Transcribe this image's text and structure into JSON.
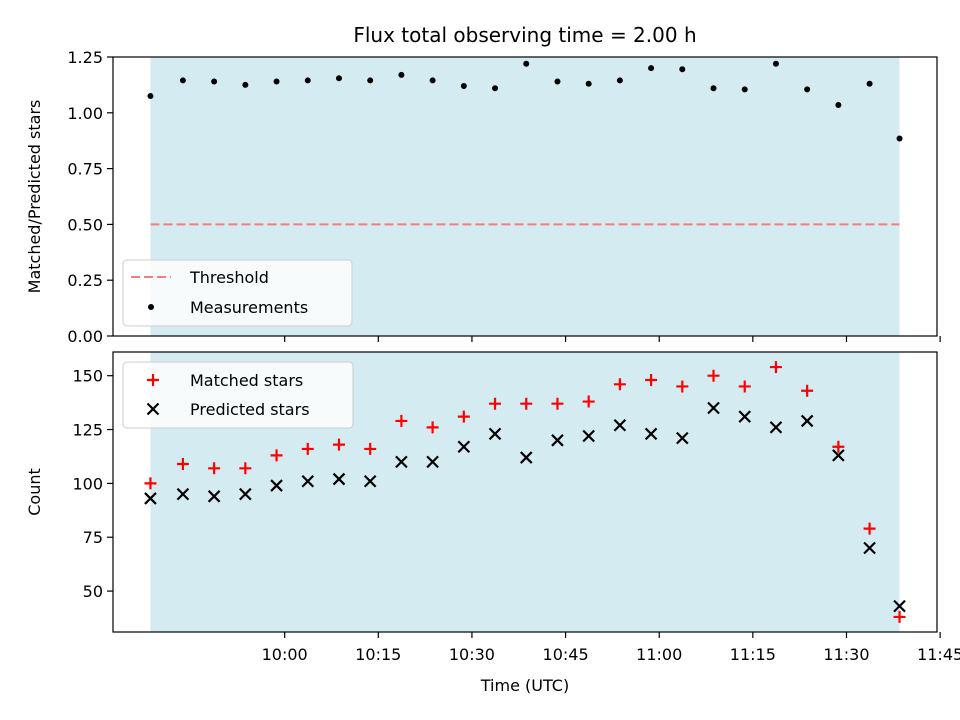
{
  "chart_data": {
    "title": "Flux total observing time = 2.00 h",
    "xlabel": "Time (UTC)",
    "x_tick_labels": [
      "10:00",
      "10:15",
      "10:30",
      "10:45",
      "11:00",
      "11:15",
      "11:30",
      "11:45"
    ],
    "x_tick_minutes": [
      600,
      615,
      630,
      645,
      660,
      675,
      690,
      705
    ],
    "xlim": [
      572.5,
      704.5
    ],
    "shaded_span": [
      578.5,
      698.5
    ],
    "colors": {
      "shade": "#d4ebf1",
      "threshold": "#f08080",
      "measurements": "#000000",
      "matched": "#ff0000",
      "predicted": "#000000"
    },
    "panels": [
      {
        "type": "scatter",
        "ylabel": "Matched/Predicted stars",
        "ylim": [
          0,
          1.25
        ],
        "y_tick_labels": [
          "0.00",
          "0.25",
          "0.50",
          "0.75",
          "1.00",
          "1.25"
        ],
        "y_ticks": [
          0,
          0.25,
          0.5,
          0.75,
          1.0,
          1.25
        ],
        "legend_position": "lower-left",
        "threshold": {
          "name": "Threshold",
          "value": 0.5
        },
        "series": [
          {
            "name": "Measurements",
            "x": [
              578.5,
              583.7,
              588.7,
              593.7,
              598.7,
              603.7,
              608.7,
              613.7,
              618.7,
              623.7,
              628.7,
              633.7,
              638.7,
              643.7,
              648.7,
              653.7,
              658.7,
              663.7,
              668.7,
              673.7,
              678.7,
              683.7,
              688.7,
              693.7,
              698.5
            ],
            "y": [
              1.075,
              1.145,
              1.14,
              1.125,
              1.14,
              1.145,
              1.155,
              1.145,
              1.17,
              1.145,
              1.12,
              1.11,
              1.22,
              1.14,
              1.13,
              1.145,
              1.2,
              1.195,
              1.11,
              1.105,
              1.22,
              1.105,
              1.035,
              1.13,
              0.885
            ]
          }
        ]
      },
      {
        "type": "scatter",
        "ylabel": "Count",
        "ylim": [
          31,
          161
        ],
        "y_tick_labels": [
          "50",
          "75",
          "100",
          "125",
          "150"
        ],
        "y_ticks": [
          50,
          75,
          100,
          125,
          150
        ],
        "legend_position": "upper-left",
        "series": [
          {
            "name": "Matched stars",
            "marker": "+",
            "x": [
              578.5,
              583.7,
              588.7,
              593.7,
              598.7,
              603.7,
              608.7,
              613.7,
              618.7,
              623.7,
              628.7,
              633.7,
              638.7,
              643.7,
              648.7,
              653.7,
              658.7,
              663.7,
              668.7,
              673.7,
              678.7,
              683.7,
              688.7,
              693.7,
              698.5
            ],
            "y": [
              100,
              109,
              107,
              107,
              113,
              116,
              118,
              116,
              129,
              126,
              131,
              137,
              137,
              137,
              138,
              146,
              148,
              145,
              150,
              145,
              154,
              143,
              117,
              79,
              38
            ]
          },
          {
            "name": "Predicted stars",
            "marker": "x",
            "x": [
              578.5,
              583.7,
              588.7,
              593.7,
              598.7,
              603.7,
              608.7,
              613.7,
              618.7,
              623.7,
              628.7,
              633.7,
              638.7,
              643.7,
              648.7,
              653.7,
              658.7,
              663.7,
              668.7,
              673.7,
              678.7,
              683.7,
              688.7,
              693.7,
              698.5
            ],
            "y": [
              93,
              95,
              94,
              95,
              99,
              101,
              102,
              101,
              110,
              110,
              117,
              123,
              112,
              120,
              122,
              127,
              123,
              121,
              135,
              131,
              126,
              129,
              113,
              70,
              43
            ]
          }
        ]
      }
    ]
  }
}
